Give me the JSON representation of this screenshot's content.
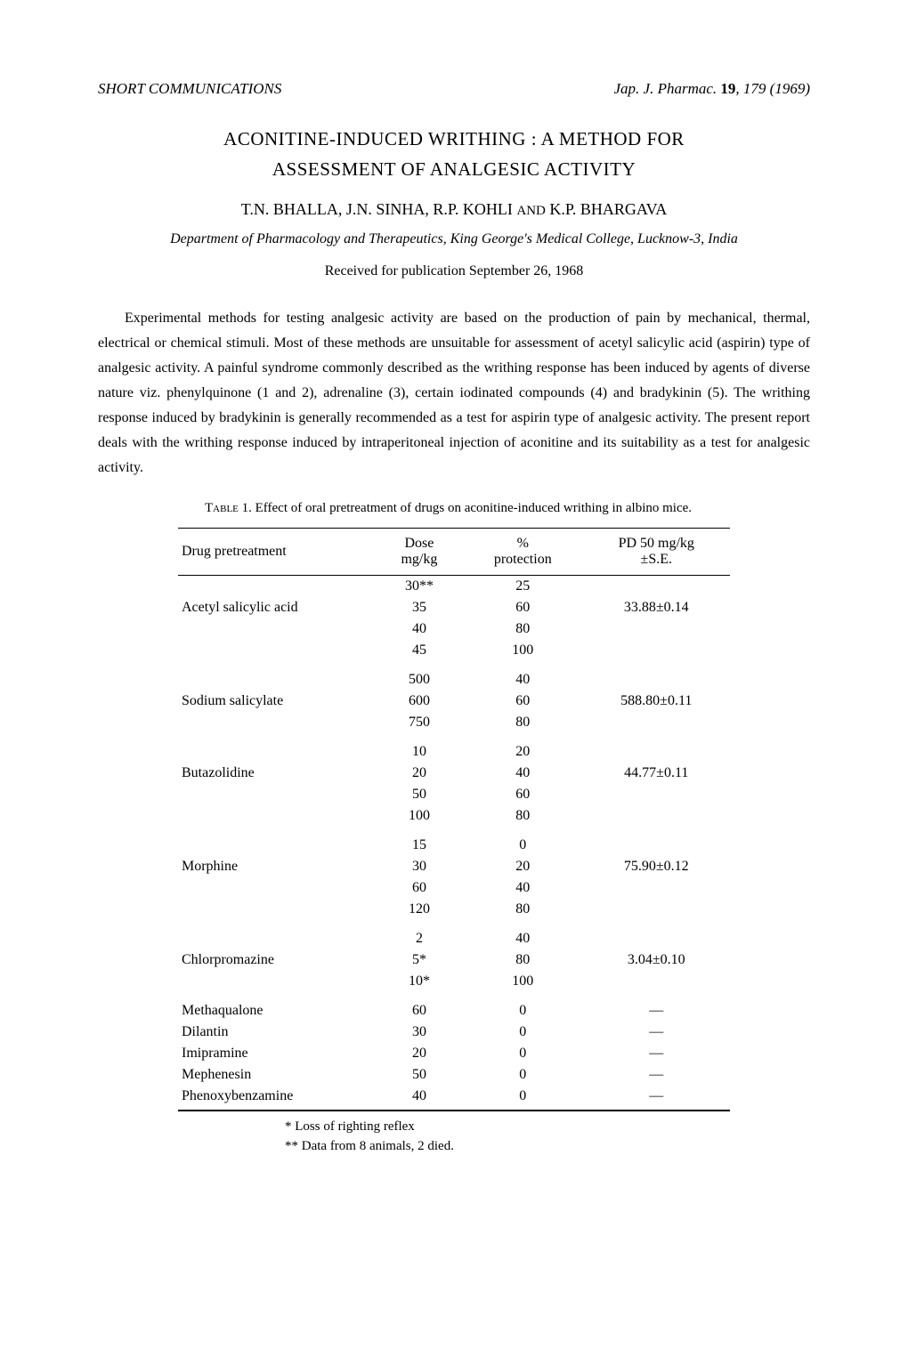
{
  "header": {
    "section_title": "SHORT COMMUNICATIONS",
    "journal_ref": "Jap. J. Pharmac.",
    "volume": "19",
    "page_year": ", 179 (1969)"
  },
  "title_line1": "ACONITINE-INDUCED WRITHING : A METHOD FOR",
  "title_line2": "ASSESSMENT OF ANALGESIC ACTIVITY",
  "authors": "T.N. BHALLA, J.N. SINHA, R.P. KOHLI ",
  "authors_and": "AND",
  "authors_last": " K.P. BHARGAVA",
  "affiliation": "Department of Pharmacology and Therapeutics, King George's Medical College, Lucknow-3, India",
  "received": "Received for publication September 26, 1968",
  "body": "Experimental methods for testing analgesic activity are based on the production of pain by mechanical, thermal, electrical or chemical stimuli. Most of these methods are unsuitable for assessment of acetyl salicylic acid (aspirin) type of analgesic activity. A painful syndrome commonly described as the writhing response has been induced by agents of diverse nature viz. phenylquinone (1 and 2), adrenaline (3), certain iodinated compounds (4) and bradykinin (5). The writhing response induced by bradykinin is generally recommended as a test for aspirin type of analgesic activity. The present report deals with the writhing response induced by intraperitoneal injection of aconitine and its suitability as a test for analgesic activity.",
  "table": {
    "caption_label": "Table 1.",
    "caption_text": "Effect of oral pretreatment of drugs on aconitine-induced writhing in albino mice.",
    "columns": {
      "c1": "Drug pretreatment",
      "c2": "Dose mg/kg",
      "c3": "% protection",
      "c4": "PD 50 mg/kg ±S.E."
    },
    "groups": [
      {
        "drug": "Acetyl salicylic acid",
        "pd50": "33.88±0.14",
        "rows": [
          {
            "dose": "30**",
            "prot": "25"
          },
          {
            "dose": "35",
            "prot": "60"
          },
          {
            "dose": "40",
            "prot": "80"
          },
          {
            "dose": "45",
            "prot": "100"
          }
        ]
      },
      {
        "drug": "Sodium salicylate",
        "pd50": "588.80±0.11",
        "rows": [
          {
            "dose": "500",
            "prot": "40"
          },
          {
            "dose": "600",
            "prot": "60"
          },
          {
            "dose": "750",
            "prot": "80"
          }
        ]
      },
      {
        "drug": "Butazolidine",
        "pd50": "44.77±0.11",
        "rows": [
          {
            "dose": "10",
            "prot": "20"
          },
          {
            "dose": "20",
            "prot": "40"
          },
          {
            "dose": "50",
            "prot": "60"
          },
          {
            "dose": "100",
            "prot": "80"
          }
        ]
      },
      {
        "drug": "Morphine",
        "pd50": "75.90±0.12",
        "rows": [
          {
            "dose": "15",
            "prot": "0"
          },
          {
            "dose": "30",
            "prot": "20"
          },
          {
            "dose": "60",
            "prot": "40"
          },
          {
            "dose": "120",
            "prot": "80"
          }
        ]
      },
      {
        "drug": "Chlorpromazine",
        "pd50": "3.04±0.10",
        "rows": [
          {
            "dose": "2",
            "prot": "40"
          },
          {
            "dose": "5*",
            "prot": "80"
          },
          {
            "dose": "10*",
            "prot": "100"
          }
        ]
      }
    ],
    "singles": [
      {
        "drug": "Methaqualone",
        "dose": "60",
        "prot": "0",
        "pd50": "—"
      },
      {
        "drug": "Dilantin",
        "dose": "30",
        "prot": "0",
        "pd50": "—"
      },
      {
        "drug": "Imipramine",
        "dose": "20",
        "prot": "0",
        "pd50": "—"
      },
      {
        "drug": "Mephenesin",
        "dose": "50",
        "prot": "0",
        "pd50": "—"
      },
      {
        "drug": "Phenoxybenzamine",
        "dose": "40",
        "prot": "0",
        "pd50": "—"
      }
    ],
    "footnote1": "* Loss of righting reflex",
    "footnote2": "** Data from 8 animals, 2 died."
  }
}
